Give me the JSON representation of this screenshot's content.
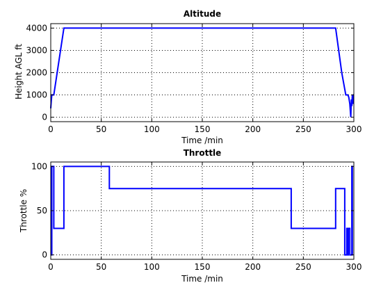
{
  "chart_data": [
    {
      "type": "line",
      "title": "Altitude",
      "xlabel": "Time /min",
      "ylabel": "Height AGL ft",
      "xlim": [
        0,
        300
      ],
      "ylim": [
        -200,
        4200
      ],
      "xticks": [
        0,
        50,
        100,
        150,
        200,
        250,
        300
      ],
      "yticks": [
        0,
        1000,
        2000,
        3000,
        4000
      ],
      "grid": true,
      "color": "#0000ff",
      "series": [
        {
          "x": [
            0,
            0.5,
            1,
            3,
            13,
            282,
            288,
            292,
            294,
            295,
            296,
            297,
            297.5,
            298,
            298.5,
            299,
            299.5,
            300
          ],
          "y": [
            400,
            700,
            1000,
            1000,
            4000,
            4000,
            2000,
            1000,
            1000,
            900,
            600,
            0,
            800,
            500,
            1000,
            600,
            1000,
            1000
          ]
        }
      ]
    },
    {
      "type": "line",
      "title": "Throttle",
      "xlabel": "Time /min",
      "ylabel": "Throttle %",
      "xlim": [
        0,
        300
      ],
      "ylim": [
        -5,
        105
      ],
      "xticks": [
        0,
        50,
        100,
        150,
        200,
        250,
        300
      ],
      "yticks": [
        0,
        50,
        100
      ],
      "grid": true,
      "color": "#0000ff",
      "series": [
        {
          "x": [
            0,
            1,
            1,
            3,
            3,
            13,
            13,
            58,
            58,
            238,
            238,
            282,
            282,
            291,
            291,
            293,
            293,
            293.5,
            293.5,
            294.5,
            294.5,
            296,
            296,
            298,
            298,
            298.5,
            298.5,
            299
          ],
          "y": [
            0,
            0,
            100,
            100,
            30,
            30,
            100,
            100,
            75,
            75,
            30,
            30,
            75,
            75,
            0,
            0,
            30,
            30,
            0,
            0,
            30,
            30,
            0,
            0,
            100,
            100,
            0,
            0
          ]
        }
      ]
    }
  ]
}
